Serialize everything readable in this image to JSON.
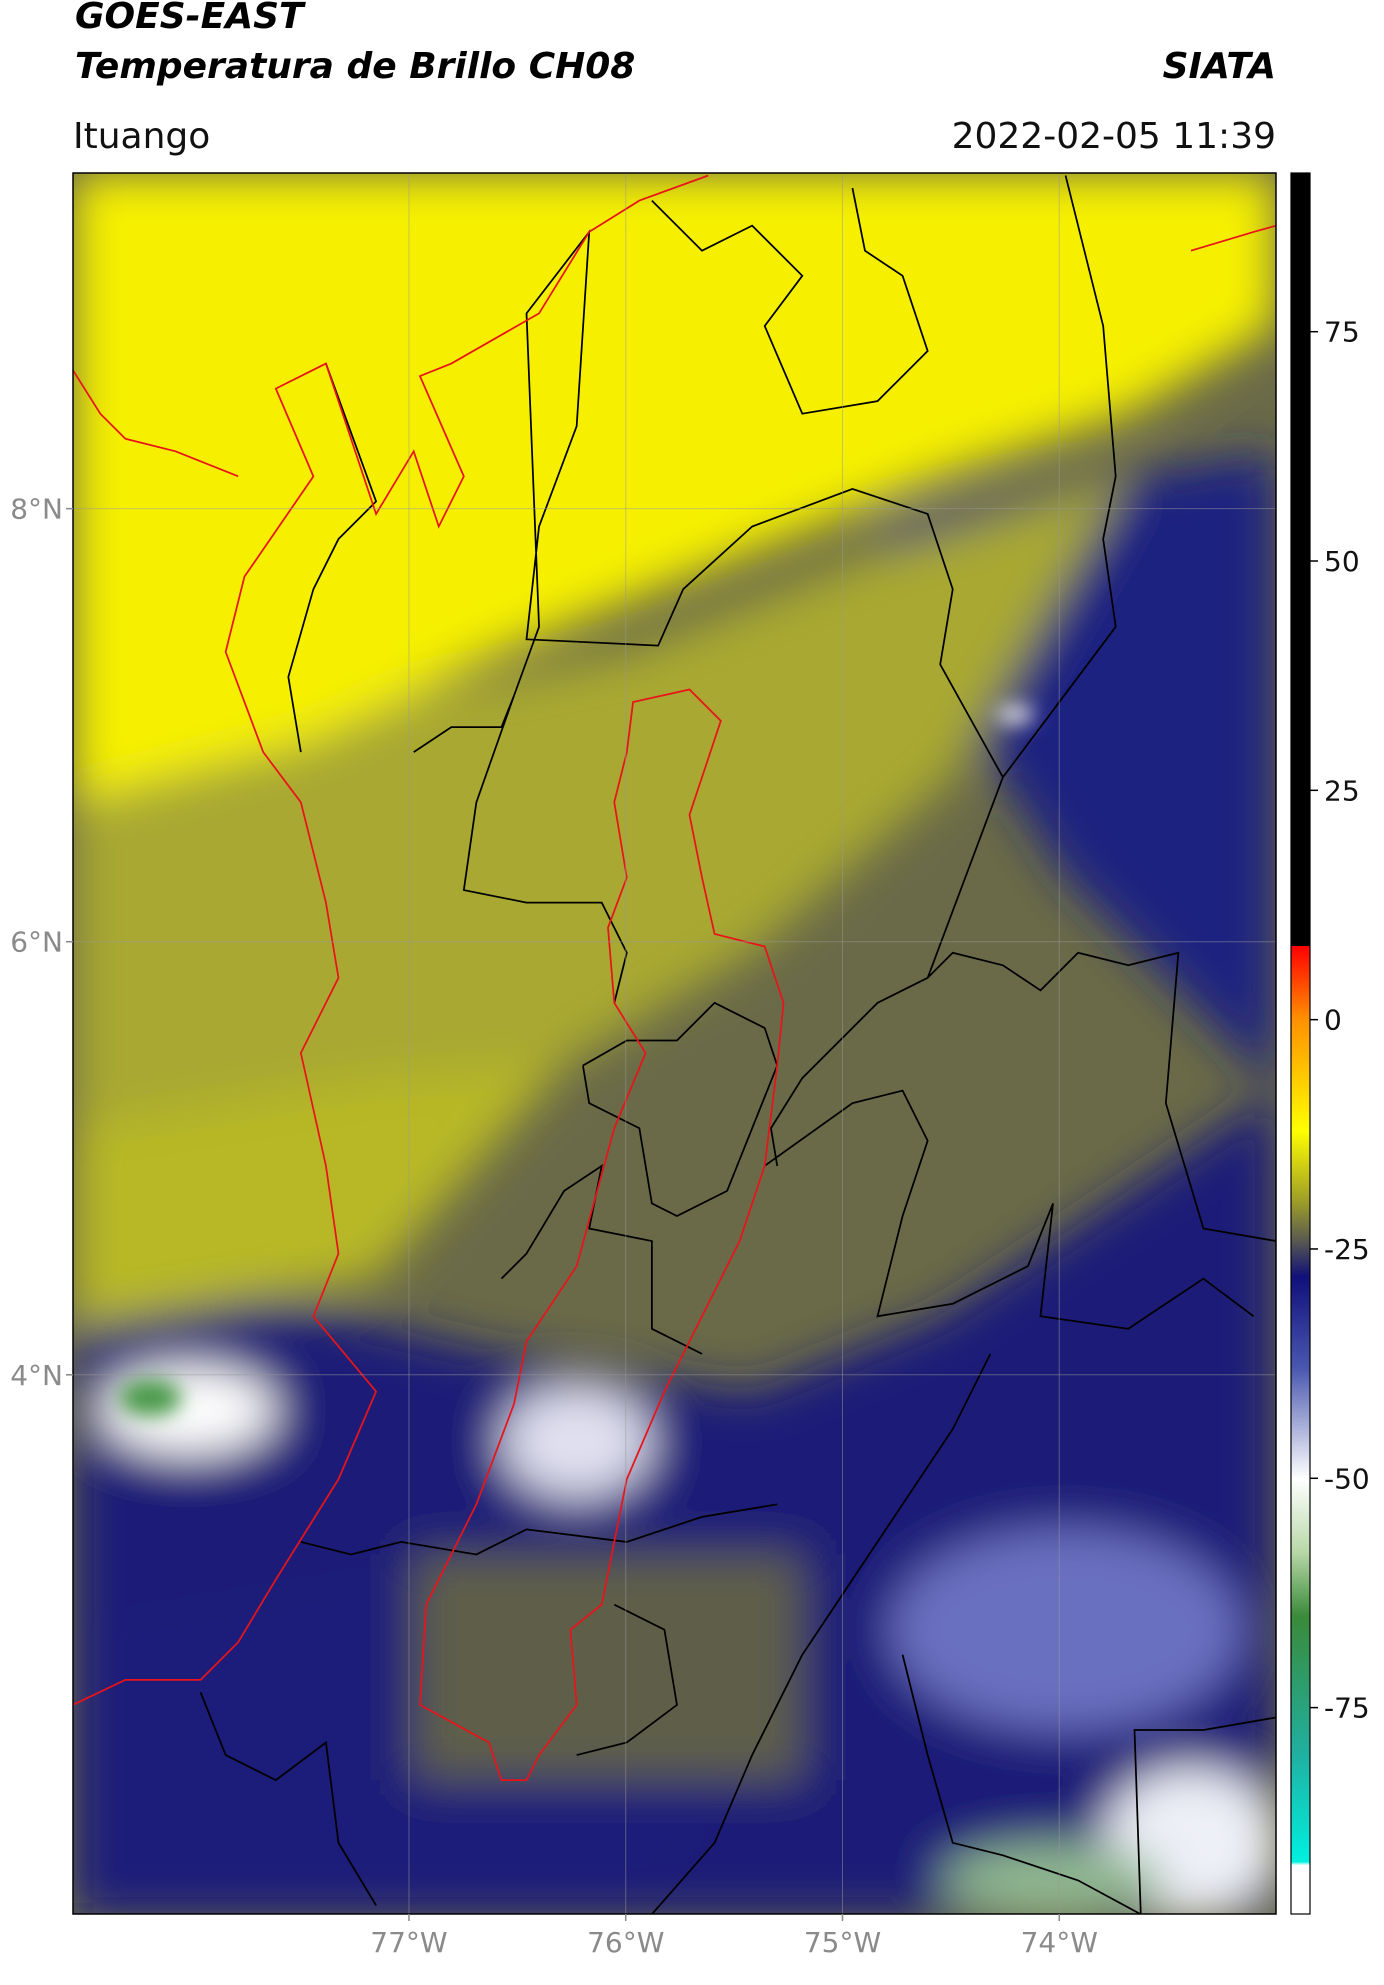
{
  "header": {
    "title": "GOES-EAST",
    "subtitle": "Temperatura de Brillo CH08",
    "source": "SIATA",
    "location": "Ituango",
    "datetime": "2022-02-05 11:39"
  },
  "map": {
    "xlim": [
      -78.55,
      -73.0
    ],
    "ylim": [
      1.51,
      9.55
    ],
    "xticks": [
      {
        "value": -77,
        "label": "77°W"
      },
      {
        "value": -76,
        "label": "76°W"
      },
      {
        "value": -75,
        "label": "75°W"
      },
      {
        "value": -74,
        "label": "74°W"
      }
    ],
    "yticks": [
      {
        "value": 8,
        "label": "8°N"
      },
      {
        "value": 6,
        "label": "6°N"
      },
      {
        "value": 4,
        "label": "4°N"
      }
    ]
  },
  "colorbar": {
    "lim": [
      -97.5,
      92.3
    ],
    "ticks": [
      75,
      50,
      25,
      0,
      -25,
      -50,
      -75
    ]
  }
}
